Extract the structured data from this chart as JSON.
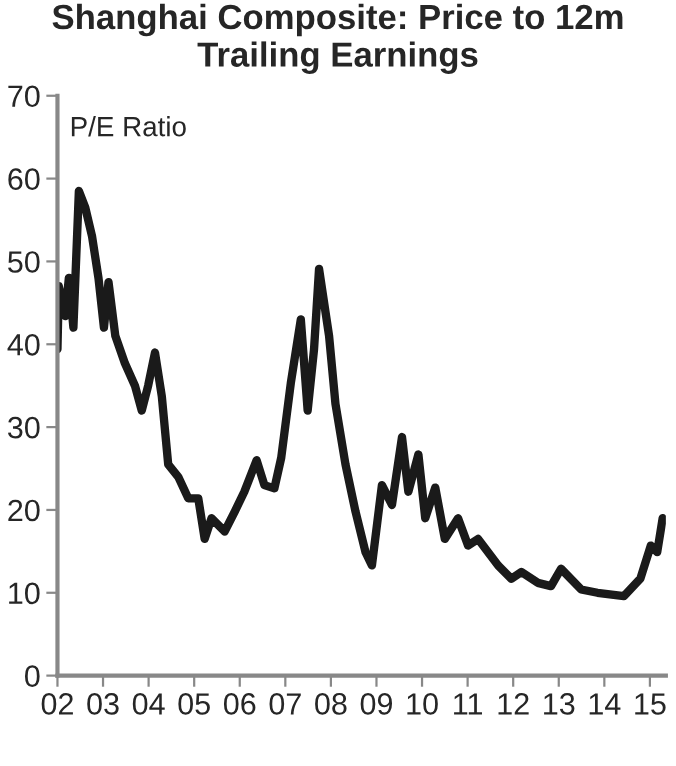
{
  "chart_data": {
    "type": "line",
    "title": "Shanghai Composite: Price to 12m\nTrailing Earnings",
    "ylabel": "P/E Ratio",
    "x": [
      2002.0,
      2002.03,
      2002.17,
      2002.25,
      2002.35,
      2002.47,
      2002.61,
      2002.76,
      2002.9,
      2003.02,
      2003.12,
      2003.27,
      2003.48,
      2003.7,
      2003.85,
      2003.99,
      2004.14,
      2004.29,
      2004.43,
      2004.65,
      2004.87,
      2005.09,
      2005.23,
      2005.38,
      2005.67,
      2005.89,
      2006.1,
      2006.37,
      2006.54,
      2006.76,
      2006.91,
      2007.12,
      2007.34,
      2007.49,
      2007.63,
      2007.74,
      2007.96,
      2008.1,
      2008.32,
      2008.54,
      2008.76,
      2008.9,
      2009.12,
      2009.34,
      2009.56,
      2009.7,
      2009.92,
      2010.07,
      2010.29,
      2010.5,
      2010.79,
      2011.01,
      2011.23,
      2011.67,
      2011.96,
      2012.18,
      2012.54,
      2012.83,
      2013.05,
      2013.49,
      2013.85,
      2014.43,
      2014.79,
      2015.02,
      2015.16,
      2015.28
    ],
    "series": [
      {
        "color": "#1a1a1a",
        "values": [
          39.4,
          47,
          43.4,
          48,
          42,
          58.5,
          56.5,
          53,
          48,
          42,
          47.5,
          41,
          37.7,
          35,
          32,
          35,
          39,
          33.7,
          25.5,
          24,
          21.4,
          21.4,
          16.5,
          19,
          17.4,
          19.8,
          22.2,
          26,
          23,
          22.6,
          26.3,
          35.3,
          43,
          32,
          39.4,
          49.1,
          41,
          32.8,
          25.5,
          19.8,
          14.9,
          13.3,
          23,
          20.6,
          28.8,
          22.2,
          26.7,
          19,
          22.7,
          16.5,
          19,
          15.7,
          16.5,
          13.3,
          11.7,
          12.5,
          11.2,
          10.8,
          12.9,
          10.4,
          10,
          9.6,
          11.7,
          15.7,
          14.9,
          19
        ]
      }
    ],
    "xlim": [
      2002,
      2015.35
    ],
    "xticks": [
      {
        "value": 2002,
        "label": "02"
      },
      {
        "value": 2003,
        "label": "03"
      },
      {
        "value": 2004,
        "label": "04"
      },
      {
        "value": 2005,
        "label": "05"
      },
      {
        "value": 2006,
        "label": "06"
      },
      {
        "value": 2007,
        "label": "07"
      },
      {
        "value": 2008,
        "label": "08"
      },
      {
        "value": 2009,
        "label": "09"
      },
      {
        "value": 2010,
        "label": "10"
      },
      {
        "value": 2011,
        "label": "11"
      },
      {
        "value": 2012,
        "label": "12"
      },
      {
        "value": 2013,
        "label": "13"
      },
      {
        "value": 2014,
        "label": "14"
      },
      {
        "value": 2015,
        "label": "15"
      }
    ],
    "ylim": [
      0,
      70
    ],
    "yticks": [
      0,
      10,
      20,
      30,
      40,
      50,
      60,
      70
    ],
    "grid": false,
    "legend": false
  }
}
